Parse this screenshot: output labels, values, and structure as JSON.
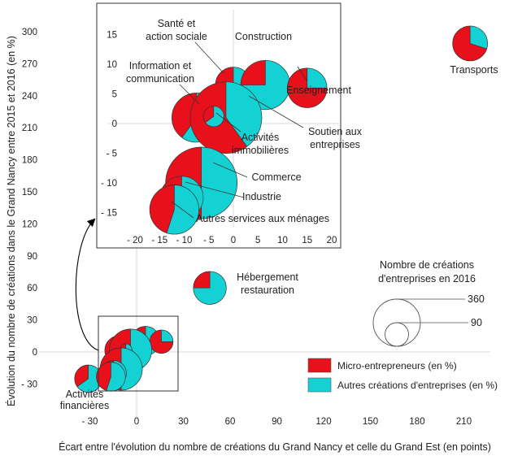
{
  "chart_data": {
    "type": "scatter",
    "subtype": "bubble-pie",
    "xlabel": "Écart entre l'évolution du nombre de créations du Grand Nancy et celle du Grand Est (en points)",
    "ylabel": "Évolution du nombre de créations dans le Grand Nancy entre 2015 et 2016 (en %)",
    "x_ticks": [
      "- 30",
      "0",
      "30",
      "60",
      "90",
      "120",
      "150",
      "180",
      "210"
    ],
    "y_ticks": [
      "- 30",
      "0",
      "30",
      "60",
      "90",
      "120",
      "150",
      "180",
      "210",
      "240",
      "270",
      "300"
    ],
    "xlim": [
      -40,
      230
    ],
    "ylim": [
      -45,
      315
    ],
    "grid": false,
    "colors": {
      "micro": "#e8101b",
      "autres": "#14d2d4"
    },
    "legend": {
      "position": "bottom-right",
      "items": [
        {
          "label": "Micro-entrepreneurs (en %)",
          "color": "#e8101b"
        },
        {
          "label": "Autres créations d'entreprises (en %)",
          "color": "#14d2d4"
        }
      ]
    },
    "size_legend": {
      "title": [
        "Nombre de créations",
        "d'entreprises en 2016"
      ],
      "entries": [
        {
          "value": 360,
          "label": "360"
        },
        {
          "value": 90,
          "label": "90"
        }
      ]
    },
    "points": [
      {
        "name": "Transports",
        "label": [
          "Transports"
        ],
        "x": 214,
        "y": 289,
        "size": 90,
        "micro_pct": 70
      },
      {
        "name": "Hébergement restauration",
        "label": [
          "Hébergement",
          "restauration"
        ],
        "x": 47,
        "y": 60,
        "size": 80,
        "micro_pct": 25
      },
      {
        "name": "Activités financières",
        "label": [
          "Activités",
          "financières"
        ],
        "x": -31,
        "y": -25,
        "size": 55,
        "micro_pct": 35
      }
    ],
    "inset": {
      "x_ticks": [
        "- 20",
        "- 15",
        "- 10",
        "- 5",
        "0",
        "5",
        "10",
        "15",
        "20"
      ],
      "y_ticks": [
        "15",
        "10",
        "5",
        "0",
        "- 5",
        "- 10",
        "- 15"
      ],
      "xlim": [
        -24,
        23
      ],
      "ylim": [
        -18.5,
        17.5
      ],
      "points": [
        {
          "name": "Santé et action sociale",
          "label": [
            "Santé et",
            "action sociale"
          ],
          "x": 0,
          "y": 6.5,
          "size": 90,
          "micro_pct": 55
        },
        {
          "name": "Construction",
          "label": [
            "Construction"
          ],
          "x": 6.5,
          "y": 6.5,
          "size": 170,
          "micro_pct": 25
        },
        {
          "name": "Enseignement",
          "label": [
            "Enseignement"
          ],
          "x": 15,
          "y": 6,
          "size": 110,
          "micro_pct": 75
        },
        {
          "name": "Information et communication",
          "label": [
            "Information et",
            "communication"
          ],
          "x": -7.5,
          "y": 1,
          "size": 170,
          "micro_pct": 40
        },
        {
          "name": "Activités immobilières",
          "label": [
            "Activités",
            "immobilières"
          ],
          "x": -1.5,
          "y": 1,
          "size": 360,
          "micro_pct": 60
        },
        {
          "name": "Soutien aux entreprises",
          "label": [
            "Soutien aux",
            "entreprises"
          ],
          "x": -4,
          "y": 1.2,
          "size": 30,
          "micro_pct": 35
        },
        {
          "name": "Commerce",
          "label": [
            "Commerce"
          ],
          "x": -6.5,
          "y": -10,
          "size": 360,
          "micro_pct": 50
        },
        {
          "name": "Industrie",
          "label": [
            "Industrie"
          ],
          "x": -10.5,
          "y": -12.5,
          "size": 130,
          "micro_pct": 60
        },
        {
          "name": "Autres services aux ménages",
          "label": [
            "Autres services aux ménages"
          ],
          "x": -12,
          "y": -14.5,
          "size": 170,
          "micro_pct": 45
        }
      ]
    }
  }
}
